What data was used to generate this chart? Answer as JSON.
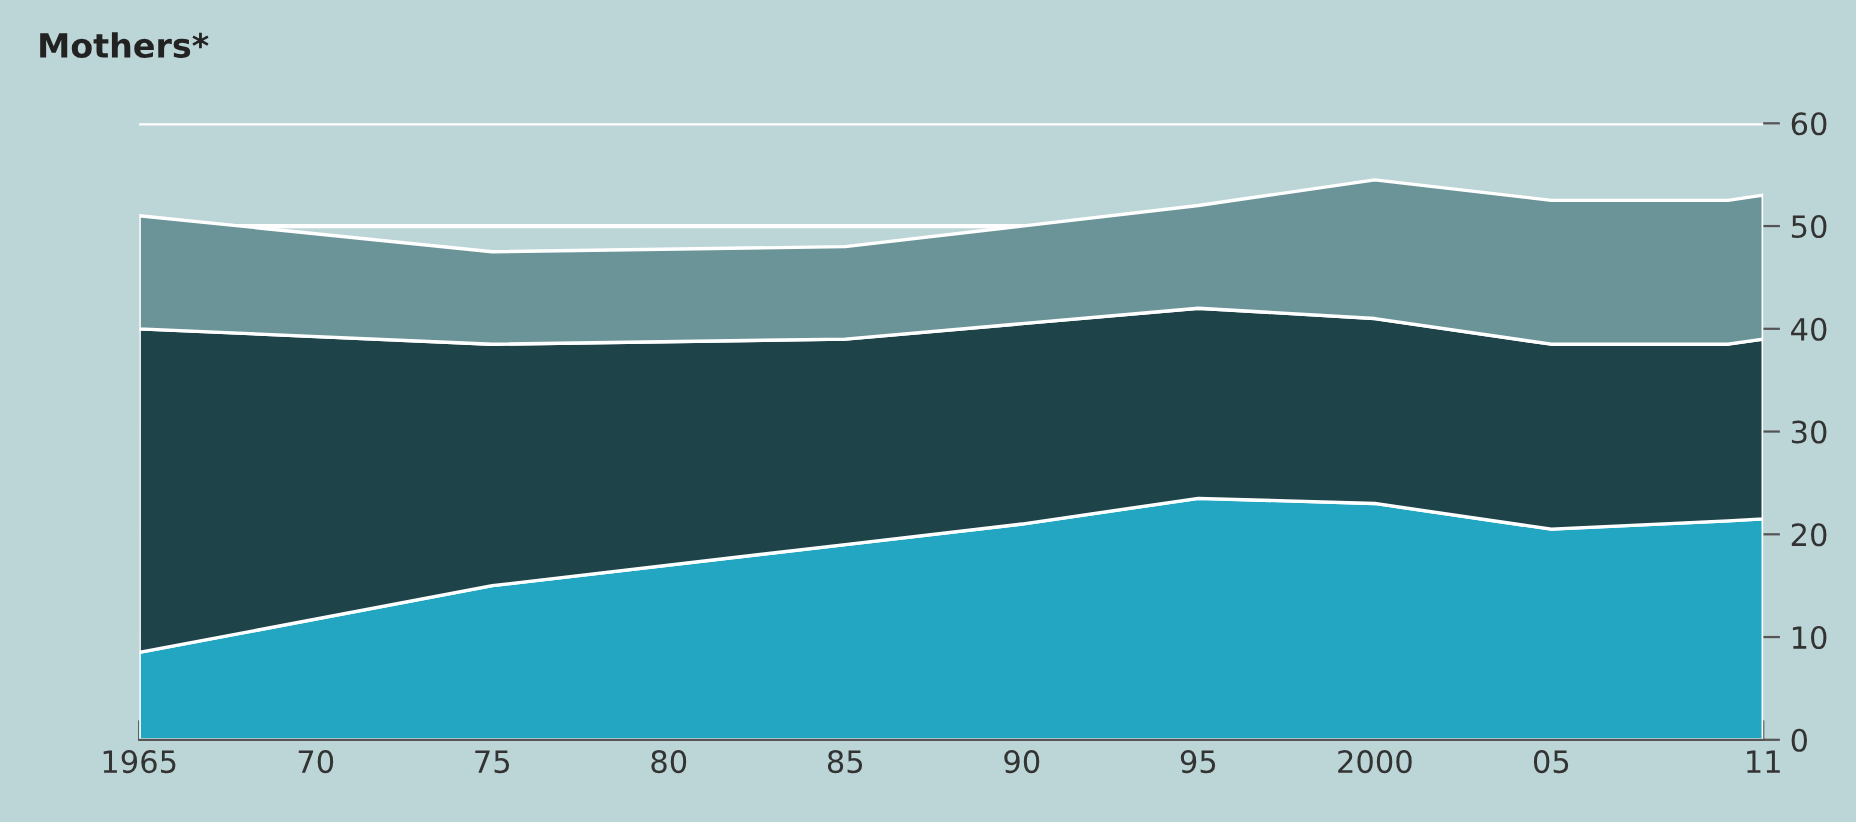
{
  "chart_data": {
    "type": "area",
    "title": "Mothers*",
    "stacked": true,
    "x": [
      1965,
      1975,
      1985,
      1990,
      1995,
      2000,
      2005,
      2010,
      2011
    ],
    "series": [
      {
        "color": "#22a6c2",
        "values": [
          8.5,
          15,
          19,
          21,
          23.5,
          23,
          20.5,
          21.3,
          21.5
        ]
      },
      {
        "color": "#1e444a",
        "values": [
          31.5,
          23.5,
          20,
          19.5,
          18.5,
          18,
          18,
          17.2,
          17.5
        ]
      },
      {
        "color": "#6a9498",
        "values": [
          11,
          9,
          9,
          9.5,
          10,
          13.5,
          14,
          14,
          14
        ]
      }
    ],
    "xlim": [
      1965,
      2011
    ],
    "xticks": [
      1965,
      {
        "value": 1970,
        "label": "70"
      },
      {
        "value": 1975,
        "label": "75"
      },
      {
        "value": 1980,
        "label": "80"
      },
      {
        "value": 1985,
        "label": "85"
      },
      {
        "value": 1990,
        "label": "90"
      },
      {
        "value": 1995,
        "label": "95"
      },
      2000,
      {
        "value": 2005,
        "label": "05"
      },
      {
        "value": 2011,
        "label": "11"
      }
    ],
    "ylim": [
      0,
      60
    ],
    "yticks": [
      0,
      10,
      20,
      30,
      40,
      50,
      60
    ],
    "grid": "y",
    "legend": false
  }
}
